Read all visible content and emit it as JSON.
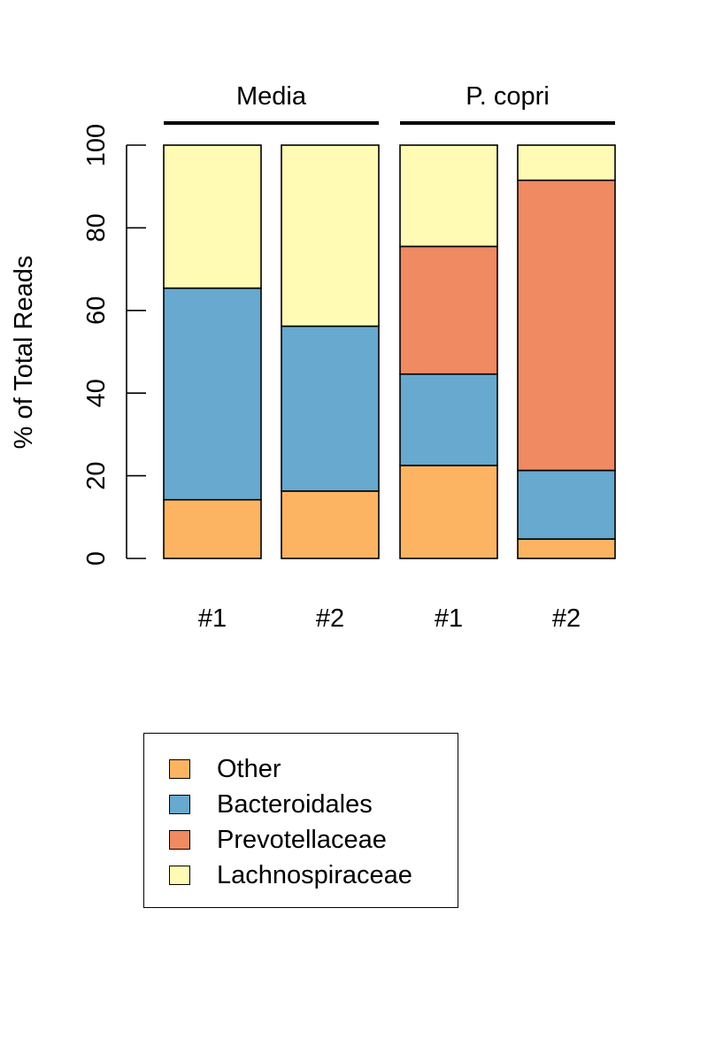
{
  "chart_data": {
    "type": "bar",
    "stacked": true,
    "groups": [
      {
        "label": "Media",
        "categories": [
          "#1",
          "#2"
        ]
      },
      {
        "label": "P. copri",
        "categories": [
          "#1",
          "#2"
        ]
      }
    ],
    "categories": [
      "#1",
      "#2",
      "#1",
      "#2"
    ],
    "ylabel": "% of Total Reads",
    "ylim": [
      0,
      100
    ],
    "yticks": [
      0,
      20,
      40,
      60,
      80,
      100
    ],
    "grid": false,
    "legend_position": "bottom-left",
    "series": [
      {
        "name": "Other",
        "color": "#FDB462",
        "values": [
          14.2,
          16.3,
          22.5,
          4.7
        ]
      },
      {
        "name": "Bacteroidales",
        "color": "#67A9CF",
        "values": [
          51.2,
          39.9,
          22.1,
          16.6
        ]
      },
      {
        "name": "Prevotellaceae",
        "color": "#EF8A62",
        "values": [
          0,
          0,
          30.9,
          70.2
        ]
      },
      {
        "name": "Lachnospiraceae",
        "color": "#FFFBB4",
        "values": [
          34.6,
          43.8,
          24.5,
          8.5
        ]
      }
    ]
  }
}
